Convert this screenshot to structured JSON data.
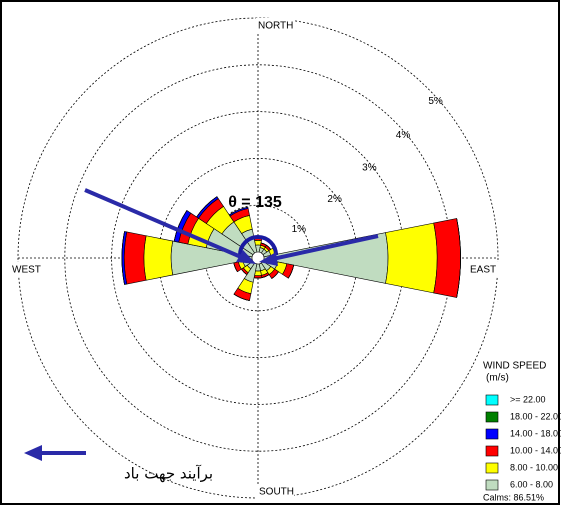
{
  "chart_data": {
    "type": "windrose",
    "directions": [
      "N",
      "NNE",
      "NE",
      "ENE",
      "E",
      "ESE",
      "SE",
      "SSE",
      "S",
      "SSW",
      "SW",
      "WSW",
      "W",
      "WNW",
      "NW",
      "NNW"
    ],
    "direction_labels": {
      "north": "NORTH",
      "east": "EAST",
      "south": "SOUTH",
      "west": "WEST"
    },
    "rlim": [
      0,
      5
    ],
    "rticks": [
      {
        "value": 1,
        "label": "1%"
      },
      {
        "value": 2,
        "label": "2%"
      },
      {
        "value": 3,
        "label": "3%"
      },
      {
        "value": 4,
        "label": "4%"
      },
      {
        "value": 5,
        "label": "5%"
      }
    ],
    "series": [
      {
        "name": "6.00 - 8.00",
        "color": "#c0dcc0",
        "values": [
          0.15,
          0.1,
          0.1,
          0.15,
          2.65,
          0.3,
          0.2,
          0.15,
          0.15,
          0.4,
          0.15,
          0.2,
          1.73,
          1.0,
          0.8,
          0.5
        ]
      },
      {
        "name": "8.00 - 10.00",
        "color": "#ffff00",
        "values": [
          0.1,
          0.05,
          0.05,
          0.1,
          1.05,
          0.2,
          0.1,
          0.1,
          0.1,
          0.25,
          0.1,
          0.1,
          0.58,
          0.4,
          0.4,
          0.3
        ]
      },
      {
        "name": "10.00 - 14.00",
        "color": "#ff0000",
        "values": [
          0.05,
          0.05,
          0.05,
          0.05,
          0.5,
          0.15,
          0.1,
          0.05,
          0.05,
          0.15,
          0.05,
          0.1,
          0.42,
          0.2,
          0.2,
          0.15
        ]
      },
      {
        "name": "14.00 - 18.00",
        "color": "#0000ff",
        "values": [
          0,
          0,
          0,
          0,
          0,
          0,
          0,
          0,
          0,
          0,
          0,
          0,
          0.05,
          0.1,
          0.05,
          0.03
        ]
      },
      {
        "name": "18.00 - 22.00",
        "color": "#008000",
        "values": [
          0,
          0,
          0,
          0,
          0,
          0,
          0,
          0,
          0,
          0,
          0,
          0,
          0,
          0,
          0,
          0
        ]
      },
      {
        "name": ">= 22.00",
        "color": "#00ffff",
        "values": [
          0,
          0,
          0,
          0,
          0,
          0,
          0,
          0,
          0,
          0,
          0,
          0,
          0,
          0,
          0,
          0
        ]
      }
    ],
    "legend_title": "WIND SPEED",
    "legend_unit": "(m/s)",
    "calms_label": "Calms: 86.51%",
    "annotation": "θ = 135",
    "arrow_caption": "برآیند جهت باد"
  }
}
